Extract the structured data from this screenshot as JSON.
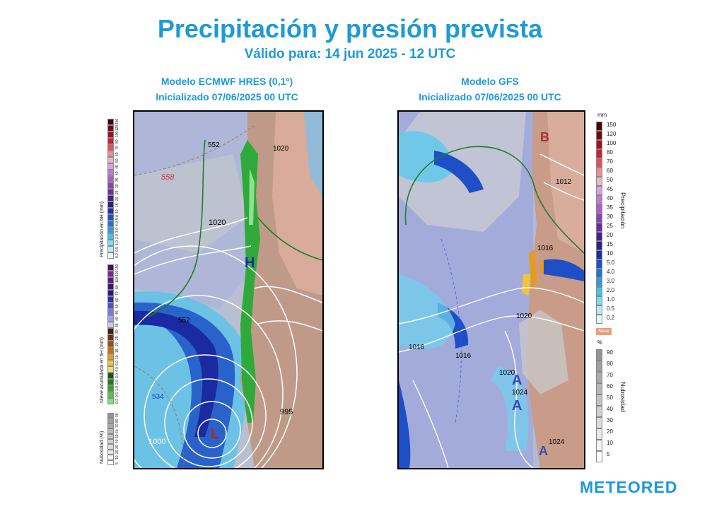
{
  "header": {
    "title": "Precipitación y presión prevista",
    "subtitle": "Válido para: 14 jun 2025 - 12 UTC"
  },
  "models": [
    {
      "name": "Modelo ECMWF HRES (0,1º)",
      "init": "Inicializado 07/06/2025 00 UTC"
    },
    {
      "name": "Modelo GFS",
      "init": "Inicializado 07/06/2025 00 UTC"
    }
  ],
  "left_map": {
    "isobar_labels": [
      "1020",
      "1020",
      "1000",
      "995"
    ],
    "height_labels": [
      "552",
      "558",
      "552",
      "534"
    ],
    "high_marker": "H",
    "low_marker": "L"
  },
  "right_map": {
    "isobar_labels": [
      "1012",
      "1016",
      "1016",
      "1016",
      "1020",
      "1020",
      "1024",
      "1024"
    ],
    "high_markers": [
      "A",
      "A",
      "A"
    ],
    "low_marker": "B"
  },
  "left_legend": {
    "precip_title": "Precipitación en 6H (mm)",
    "snow_title": "Nieve acumulada en 6H (mm)",
    "cloud_title": "Nubosidad (%)",
    "precip_colors": [
      "#e6f7fb",
      "#b7ecf5",
      "#7fdcef",
      "#43c4e6",
      "#2a9fe0",
      "#1f74d6",
      "#1c4fc8",
      "#1a2ea8",
      "#2c1f86",
      "#4b1e8a",
      "#6a2c9e",
      "#8e3fb1",
      "#b45bc8",
      "#c27ad2",
      "#d9a2e0",
      "#e8b7c9",
      "#f08a9a",
      "#e64f5f",
      "#c8202f",
      "#9e0f1e",
      "#6e0a13",
      "#3e0509"
    ],
    "snow_colors": [
      "#7fe07f",
      "#55c655",
      "#2fa52f",
      "#1d7d1d",
      "#0f560f",
      "#e8e07a",
      "#f2c43d",
      "#e89a1e",
      "#c86b12",
      "#9e4a10",
      "#6e3410",
      "#3e1f0c",
      "#c8c8ff",
      "#a0a0f0",
      "#7878e0",
      "#5050c8",
      "#3030a8",
      "#201880",
      "#3a1570",
      "#5a1b80",
      "#7a2890",
      "#4a0f5a"
    ],
    "cloud_colors": [
      "#ffffff",
      "#f4f4f4",
      "#e8e8e8",
      "#dcdcdc",
      "#d0d0d0",
      "#c4c4c4",
      "#b8b8b8",
      "#acacac",
      "#a0a0a0",
      "#949494"
    ],
    "precip_ticks": [
      "0.2",
      "0.5",
      "1.0",
      "2.0",
      "3.0",
      "4.0",
      "5.0",
      "10",
      "15",
      "20",
      "25",
      "30",
      "35",
      "40",
      "45",
      "50",
      "60",
      "70",
      "80",
      "100",
      "120",
      "150"
    ],
    "cloud_ticks": [
      "5",
      "10",
      "20",
      "30",
      "40",
      "50",
      "60",
      "70",
      "80",
      "90"
    ]
  },
  "right_legend": {
    "unit": "mm",
    "precip_title": "Precipitación",
    "ticks": [
      "0.2",
      "0.5",
      "1.0",
      "2.0",
      "3.0",
      "4.0",
      "5.0",
      "10",
      "15",
      "20",
      "25",
      "30",
      "35",
      "40",
      "45",
      "50",
      "60",
      "70",
      "80",
      "100",
      "120",
      "150"
    ],
    "colors": [
      "#e6f7fb",
      "#b7ecf5",
      "#7fdcef",
      "#43c4e6",
      "#2a9fe0",
      "#1f74d6",
      "#1c4fc8",
      "#1a2ea8",
      "#2c1f86",
      "#4b1e8a",
      "#6a2c9e",
      "#8e3fb1",
      "#b45bc8",
      "#c27ad2",
      "#d9a2e0",
      "#e8b7c9",
      "#f08a9a",
      "#e64f5f",
      "#c8202f",
      "#9e0f1e",
      "#6e0a13",
      "#3e0509"
    ],
    "snow_tag": "Nieve",
    "cloud_unit": "%",
    "cloud_title": "Nubosidad",
    "cloud_ticks": [
      "5",
      "10",
      "20",
      "30",
      "40",
      "50",
      "60",
      "70",
      "80",
      "90"
    ],
    "cloud_colors": [
      "#ffffff",
      "#f4f4f4",
      "#e8e8e8",
      "#dcdcdc",
      "#d0d0d0",
      "#c4c4c4",
      "#b8b8b8",
      "#acacac",
      "#a0a0a0",
      "#949494"
    ]
  },
  "brand": {
    "logo": "METEORED"
  }
}
